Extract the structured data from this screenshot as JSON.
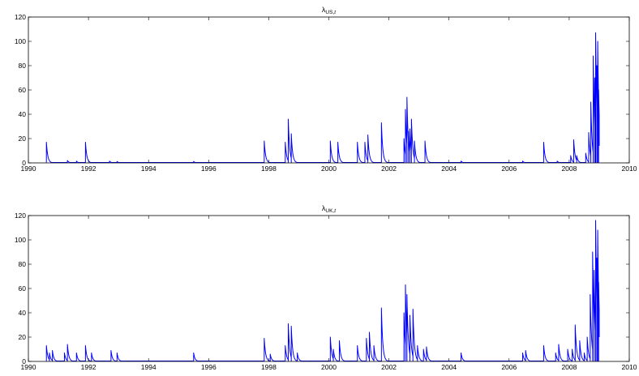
{
  "chart_data": [
    {
      "type": "line",
      "title_symbol": "λ",
      "title_subscript": "US,",
      "title_subscript_italic": "t",
      "xlim": [
        1990,
        2010
      ],
      "ylim": [
        0,
        120
      ],
      "xticks": [
        1990,
        1992,
        1994,
        1996,
        1998,
        2000,
        2002,
        2004,
        2006,
        2008,
        2010
      ],
      "yticks": [
        0,
        20,
        40,
        60,
        80,
        100,
        120
      ],
      "xtick_labels": [
        "1990",
        "1992",
        "1994",
        "1996",
        "1998",
        "2000",
        "2002",
        "2004",
        "2006",
        "2008",
        "2010"
      ],
      "ytick_labels": [
        "0",
        "20",
        "40",
        "60",
        "80",
        "100",
        "120"
      ],
      "grid": false,
      "legend": "none",
      "color": "#0000ff",
      "baseline": 0.3,
      "decay_years": 0.045,
      "spikes": [
        [
          1990.6,
          17
        ],
        [
          1991.3,
          2
        ],
        [
          1991.6,
          1.5
        ],
        [
          1991.9,
          17
        ],
        [
          1992.7,
          1.5
        ],
        [
          1992.95,
          1.2
        ],
        [
          1995.5,
          1.2
        ],
        [
          1997.85,
          18
        ],
        [
          1998.55,
          17
        ],
        [
          1998.65,
          36
        ],
        [
          1998.75,
          24
        ],
        [
          2000.05,
          18
        ],
        [
          2000.3,
          17
        ],
        [
          2000.95,
          17
        ],
        [
          2001.2,
          17
        ],
        [
          2001.3,
          23
        ],
        [
          2001.75,
          33
        ],
        [
          2002.5,
          20
        ],
        [
          2002.55,
          44
        ],
        [
          2002.6,
          54
        ],
        [
          2002.65,
          26
        ],
        [
          2002.7,
          28
        ],
        [
          2002.75,
          36
        ],
        [
          2002.85,
          18
        ],
        [
          2003.2,
          18
        ],
        [
          2004.4,
          1.5
        ],
        [
          2006.45,
          1.5
        ],
        [
          2007.15,
          17
        ],
        [
          2007.6,
          1.5
        ],
        [
          2008.05,
          6
        ],
        [
          2008.15,
          19
        ],
        [
          2008.25,
          6
        ],
        [
          2008.55,
          8
        ],
        [
          2008.65,
          25
        ],
        [
          2008.72,
          50
        ],
        [
          2008.8,
          88
        ],
        [
          2008.85,
          70
        ],
        [
          2008.88,
          107
        ],
        [
          2008.92,
          80
        ],
        [
          2008.95,
          100
        ],
        [
          2008.98,
          60
        ]
      ],
      "end": [
        2009.0,
        14
      ]
    },
    {
      "type": "line",
      "title_symbol": "λ",
      "title_subscript": "UK,",
      "title_subscript_italic": "t",
      "xlim": [
        1990,
        2010
      ],
      "ylim": [
        0,
        120
      ],
      "xticks": [
        1990,
        1992,
        1994,
        1996,
        1998,
        2000,
        2002,
        2004,
        2006,
        2008,
        2010
      ],
      "yticks": [
        0,
        20,
        40,
        60,
        80,
        100,
        120
      ],
      "xtick_labels": [
        "1990",
        "1992",
        "1994",
        "1996",
        "1998",
        "2000",
        "2002",
        "2004",
        "2006",
        "2008",
        "2010"
      ],
      "ytick_labels": [
        "0",
        "20",
        "40",
        "60",
        "80",
        "100",
        "120"
      ],
      "grid": false,
      "legend": "none",
      "color": "#0000ff",
      "baseline": 0.3,
      "decay_years": 0.045,
      "spikes": [
        [
          1990.6,
          13
        ],
        [
          1990.7,
          7
        ],
        [
          1990.8,
          9
        ],
        [
          1991.2,
          7
        ],
        [
          1991.3,
          14
        ],
        [
          1991.6,
          7
        ],
        [
          1991.9,
          13
        ],
        [
          1992.1,
          7
        ],
        [
          1992.75,
          9
        ],
        [
          1992.95,
          7
        ],
        [
          1995.5,
          7
        ],
        [
          1997.85,
          19
        ],
        [
          1998.05,
          6
        ],
        [
          1998.55,
          13
        ],
        [
          1998.65,
          31
        ],
        [
          1998.75,
          29
        ],
        [
          1998.95,
          7
        ],
        [
          2000.05,
          20
        ],
        [
          2000.15,
          10
        ],
        [
          2000.35,
          17
        ],
        [
          2000.95,
          13
        ],
        [
          2001.25,
          19
        ],
        [
          2001.35,
          24
        ],
        [
          2001.5,
          13
        ],
        [
          2001.75,
          44
        ],
        [
          2002.5,
          40
        ],
        [
          2002.55,
          63
        ],
        [
          2002.6,
          55
        ],
        [
          2002.7,
          38
        ],
        [
          2002.8,
          43
        ],
        [
          2002.95,
          13
        ],
        [
          2003.15,
          10
        ],
        [
          2003.25,
          12
        ],
        [
          2004.4,
          7
        ],
        [
          2006.45,
          7
        ],
        [
          2006.55,
          9
        ],
        [
          2007.15,
          13
        ],
        [
          2007.55,
          7
        ],
        [
          2007.65,
          14
        ],
        [
          2007.95,
          10
        ],
        [
          2008.1,
          10
        ],
        [
          2008.2,
          30
        ],
        [
          2008.35,
          17
        ],
        [
          2008.5,
          7
        ],
        [
          2008.6,
          20
        ],
        [
          2008.7,
          55
        ],
        [
          2008.78,
          90
        ],
        [
          2008.83,
          75
        ],
        [
          2008.88,
          116
        ],
        [
          2008.92,
          85
        ],
        [
          2008.95,
          108
        ],
        [
          2008.98,
          65
        ]
      ],
      "end": [
        2009.0,
        20
      ]
    }
  ]
}
